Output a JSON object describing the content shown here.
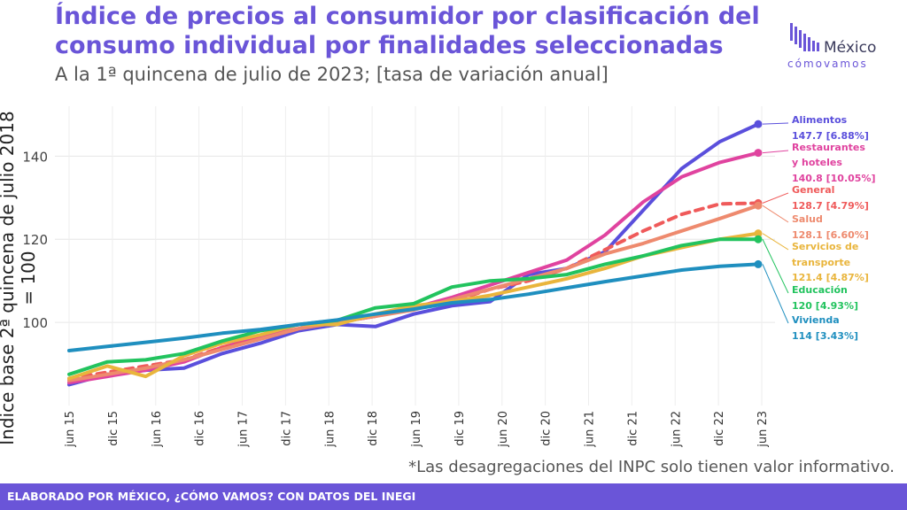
{
  "title": "Índice de precios al consumidor por clasificación del consumo individual por finalidades seleccionadas",
  "subtitle": "A la 1ª quincena de julio de 2023; [tasa de variación anual]",
  "logo": {
    "main": "México",
    "sub": "cómovamos"
  },
  "note": "*Las desagregaciones del INPC solo tienen valor informativo.",
  "footer": "ELABORADO POR MÉXICO, ¿CÓMO VAMOS? CON DATOS DEL INEGI",
  "chart_data": {
    "type": "line",
    "ylabel": "Índice base 2ª quincena de julio 2018 = 100",
    "ylim": [
      80,
      152
    ],
    "yticks": [
      100,
      120,
      140
    ],
    "xlabels": [
      "jun 15",
      "dic 15",
      "jun 16",
      "dic 16",
      "jun 17",
      "dic 17",
      "jun 18",
      "dic 18",
      "jun 19",
      "dic 19",
      "jun 20",
      "dic 20",
      "jun 21",
      "dic 21",
      "jun 22",
      "dic 22",
      "jun 23"
    ],
    "grid": true,
    "series": [
      {
        "name": "Alimentos",
        "color": "#5a4fdc",
        "dashed": false,
        "values": [
          85.0,
          87.5,
          88.5,
          89.0,
          92.5,
          95.0,
          98.0,
          99.5,
          99.0,
          102.0,
          104.0,
          105.0,
          111.5,
          113.0,
          117.0,
          127.0,
          137.0,
          143.5,
          147.7
        ],
        "label": "Alimentos",
        "value_label": "147.7 [6.88%]"
      },
      {
        "name": "Restaurantes y hoteles",
        "color": "#e0439f",
        "dashed": false,
        "values": [
          85.5,
          87.0,
          88.5,
          90.5,
          94.0,
          96.5,
          98.5,
          100.0,
          101.5,
          103.5,
          106.0,
          109.0,
          112.0,
          115.0,
          121.0,
          129.0,
          135.0,
          138.5,
          140.8
        ],
        "label": "Restaurantes y hoteles",
        "value_label": "140.8 [10.05%]"
      },
      {
        "name": "General",
        "color": "#ef5a5a",
        "dashed": true,
        "values": [
          86.5,
          88.0,
          89.5,
          91.0,
          94.0,
          96.0,
          98.5,
          100.0,
          101.5,
          103.5,
          105.0,
          108.0,
          110.0,
          113.0,
          117.5,
          122.0,
          126.0,
          128.5,
          128.7
        ],
        "label": "General",
        "value_label": "128.7 [4.79%]"
      },
      {
        "name": "Salud",
        "color": "#ee8a6e",
        "dashed": false,
        "values": [
          86.0,
          87.5,
          89.0,
          91.0,
          93.5,
          96.0,
          98.5,
          100.0,
          101.5,
          103.0,
          105.5,
          108.0,
          110.5,
          113.0,
          116.5,
          119.0,
          122.0,
          125.0,
          128.1
        ],
        "label": "Salud",
        "value_label": "128.1 [6.60%]"
      },
      {
        "name": "Servicios de transporte",
        "color": "#e9b53c",
        "dashed": false,
        "values": [
          86.5,
          89.5,
          87.0,
          92.0,
          95.0,
          97.0,
          99.5,
          99.5,
          102.0,
          104.0,
          105.0,
          106.5,
          108.5,
          110.5,
          113.0,
          116.0,
          118.0,
          120.0,
          121.4
        ],
        "label": "Servicios de transporte",
        "value_label": "121.4 [4.87%]"
      },
      {
        "name": "Educación",
        "color": "#22c35e",
        "dashed": false,
        "values": [
          87.5,
          90.5,
          91.0,
          92.5,
          95.5,
          98.0,
          99.5,
          100.5,
          103.5,
          104.5,
          108.5,
          110.0,
          110.5,
          111.5,
          114.0,
          116.0,
          118.5,
          120.0,
          120.0
        ],
        "label": "Educación",
        "value_label": "120 [4.93%]"
      },
      {
        "name": "Vivienda",
        "color": "#1f8fbf",
        "dashed": false,
        "values": [
          93.2,
          94.2,
          95.2,
          96.2,
          97.4,
          98.3,
          99.5,
          100.6,
          102.0,
          103.2,
          104.7,
          105.5,
          106.8,
          108.3,
          109.8,
          111.2,
          112.6,
          113.5,
          114.0
        ],
        "label": "Vivienda",
        "value_label": "114 [3.43%]"
      }
    ]
  }
}
